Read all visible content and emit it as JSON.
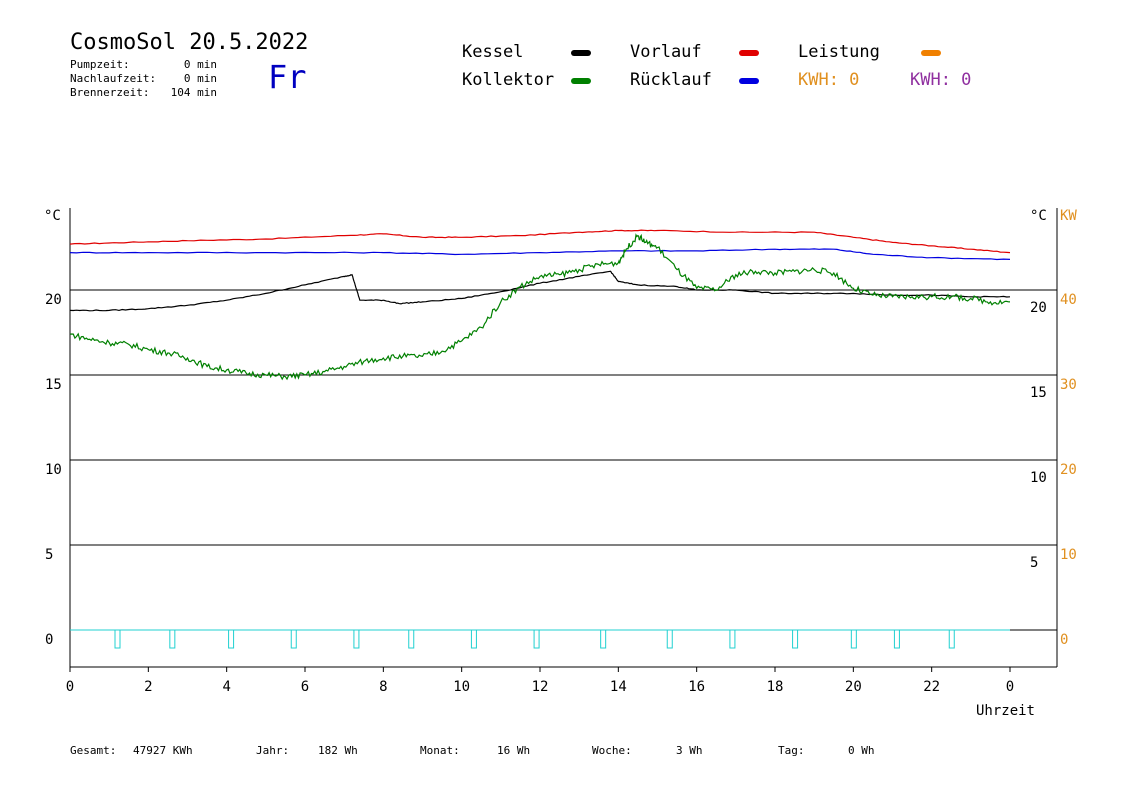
{
  "header": {
    "title": "CosmoSol 20.5.2022",
    "weekday": "Fr",
    "stats": [
      {
        "label": "Pumpzeit:",
        "value": "0 min"
      },
      {
        "label": "Nachlaufzeit:",
        "value": "0 min"
      },
      {
        "label": "Brennerzeit:",
        "value": "104 min"
      }
    ]
  },
  "legend": {
    "kessel": "Kessel",
    "kollektor": "Kollektor",
    "vorlauf": "Vorlauf",
    "ruecklauf": "Rücklauf",
    "leistung": "Leistung",
    "kwh1": "KWH: 0",
    "kwh2": "KWH: 0"
  },
  "footer": {
    "gesamt_label": "Gesamt:",
    "gesamt_value": "47927 KWh",
    "jahr_label": "Jahr:",
    "jahr_value": "182 Wh",
    "monat_label": "Monat:",
    "monat_value": "16 Wh",
    "woche_label": "Woche:",
    "woche_value": "3 Wh",
    "tag_label": "Tag:",
    "tag_value": "0 Wh"
  },
  "colors": {
    "kessel": "#000000",
    "kollektor": "#008000",
    "vorlauf": "#e00000",
    "ruecklauf": "#0000e0",
    "leistung": "#f08000",
    "kwh1": "#e09020",
    "kwh2": "#9030a0",
    "pump": "#20d0d0",
    "right_axis": "#e09020"
  },
  "chart_data": {
    "type": "line",
    "xlabel": "Uhrzeit",
    "ylabel_left": "°C",
    "ylabel_right_temp": "°C",
    "ylabel_right_power": "KW",
    "x_ticks": [
      "0",
      "2",
      "4",
      "6",
      "8",
      "10",
      "12",
      "14",
      "16",
      "18",
      "20",
      "22",
      "0"
    ],
    "xlim": [
      0,
      24
    ],
    "ylim": [
      0,
      25
    ],
    "left_ticks": [
      "0",
      "5",
      "10",
      "15",
      "20"
    ],
    "right_temp_ticks": [
      "5",
      "10",
      "15",
      "20"
    ],
    "right_power_ticks": [
      "0",
      "10",
      "20",
      "30",
      "40"
    ],
    "grid": true,
    "series": [
      {
        "name": "Vorlauf",
        "key": "vorlauf",
        "points": [
          [
            0,
            22.7
          ],
          [
            1.5,
            22.8
          ],
          [
            3,
            22.9
          ],
          [
            5,
            23.0
          ],
          [
            7,
            23.2
          ],
          [
            8,
            23.3
          ],
          [
            9,
            23.1
          ],
          [
            10,
            23.1
          ],
          [
            11.5,
            23.2
          ],
          [
            13,
            23.4
          ],
          [
            14,
            23.5
          ],
          [
            15,
            23.5
          ],
          [
            17,
            23.4
          ],
          [
            19,
            23.4
          ],
          [
            20,
            23.1
          ],
          [
            21,
            22.8
          ],
          [
            22,
            22.6
          ],
          [
            23,
            22.4
          ],
          [
            24,
            22.2
          ]
        ]
      },
      {
        "name": "Rücklauf",
        "key": "ruecklauf",
        "points": [
          [
            0,
            22.2
          ],
          [
            2,
            22.2
          ],
          [
            5,
            22.2
          ],
          [
            8,
            22.2
          ],
          [
            10,
            22.1
          ],
          [
            12,
            22.2
          ],
          [
            14,
            22.3
          ],
          [
            16,
            22.3
          ],
          [
            18,
            22.4
          ],
          [
            19.5,
            22.4
          ],
          [
            20.5,
            22.1
          ],
          [
            22,
            21.9
          ],
          [
            24,
            21.8
          ]
        ]
      },
      {
        "name": "Kessel",
        "key": "kessel",
        "points": [
          [
            0,
            18.8
          ],
          [
            1,
            18.8
          ],
          [
            2,
            18.9
          ],
          [
            3,
            19.1
          ],
          [
            4,
            19.4
          ],
          [
            5,
            19.8
          ],
          [
            6,
            20.3
          ],
          [
            7,
            20.8
          ],
          [
            7.2,
            20.9
          ],
          [
            7.4,
            19.4
          ],
          [
            8,
            19.4
          ],
          [
            8.4,
            19.2
          ],
          [
            9,
            19.3
          ],
          [
            10,
            19.5
          ],
          [
            11,
            19.9
          ],
          [
            12,
            20.4
          ],
          [
            13,
            20.8
          ],
          [
            13.8,
            21.1
          ],
          [
            14,
            20.5
          ],
          [
            14.5,
            20.3
          ],
          [
            15.5,
            20.2
          ],
          [
            16,
            20.0
          ],
          [
            17,
            20.0
          ],
          [
            18,
            19.8
          ],
          [
            19,
            19.8
          ],
          [
            20,
            19.8
          ],
          [
            21,
            19.7
          ],
          [
            22,
            19.7
          ],
          [
            23,
            19.6
          ],
          [
            24,
            19.6
          ]
        ]
      },
      {
        "name": "Kollektor",
        "key": "kollektor",
        "points": [
          [
            0,
            17.4
          ],
          [
            0.5,
            17.1
          ],
          [
            1,
            16.9
          ],
          [
            1.5,
            16.8
          ],
          [
            2,
            16.5
          ],
          [
            2.5,
            16.3
          ],
          [
            3,
            16.0
          ],
          [
            3.5,
            15.5
          ],
          [
            4,
            15.3
          ],
          [
            4.5,
            15.1
          ],
          [
            5,
            15.0
          ],
          [
            5.5,
            14.9
          ],
          [
            6,
            15.0
          ],
          [
            6.5,
            15.2
          ],
          [
            7,
            15.5
          ],
          [
            7.5,
            15.8
          ],
          [
            8,
            16.0
          ],
          [
            8.5,
            16.1
          ],
          [
            9,
            16.1
          ],
          [
            9.5,
            16.4
          ],
          [
            10,
            17.0
          ],
          [
            10.5,
            17.8
          ],
          [
            11,
            19.3
          ],
          [
            11.5,
            20.2
          ],
          [
            12,
            20.8
          ],
          [
            12.5,
            20.9
          ],
          [
            13,
            21.2
          ],
          [
            13.5,
            21.5
          ],
          [
            14,
            21.6
          ],
          [
            14.2,
            22.4
          ],
          [
            14.5,
            23.2
          ],
          [
            14.7,
            22.8
          ],
          [
            15,
            22.5
          ],
          [
            15.5,
            21.2
          ],
          [
            16,
            20.1
          ],
          [
            16.5,
            20.0
          ],
          [
            17,
            20.9
          ],
          [
            17.5,
            21.1
          ],
          [
            18,
            21.0
          ],
          [
            18.5,
            21.1
          ],
          [
            19,
            21.2
          ],
          [
            19.5,
            21.0
          ],
          [
            20,
            20.1
          ],
          [
            20.5,
            19.7
          ],
          [
            21,
            19.6
          ],
          [
            21.5,
            19.6
          ],
          [
            22,
            19.6
          ],
          [
            22.5,
            19.6
          ],
          [
            23,
            19.5
          ],
          [
            23.5,
            19.3
          ],
          [
            24,
            19.3
          ]
        ]
      }
    ],
    "pump_pulses_h": [
      1.2,
      2.6,
      4.1,
      5.7,
      7.3,
      8.7,
      10.3,
      11.9,
      13.6,
      15.3,
      16.9,
      18.5,
      20.0,
      21.1,
      22.5
    ]
  }
}
